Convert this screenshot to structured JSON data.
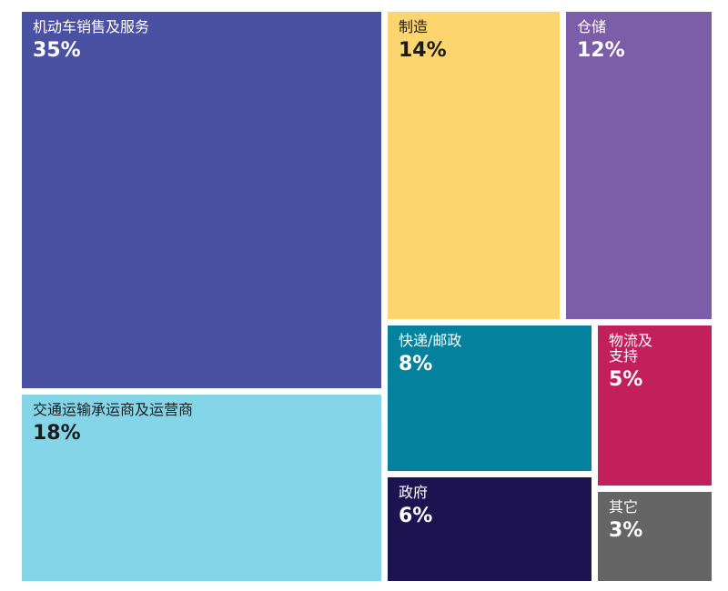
{
  "chart_data": {
    "type": "treemap",
    "items": [
      {
        "label": "机动车销售及服务",
        "value": 35,
        "display": "35%",
        "color": "#4a51a3",
        "text_color": "#ffffff"
      },
      {
        "label": "交通运输承运商及运营商",
        "value": 18,
        "display": "18%",
        "color": "#85d5e9",
        "text_color": "#1b1b1b"
      },
      {
        "label": "制造",
        "value": 14,
        "display": "14%",
        "color": "#fcd56f",
        "text_color": "#1b1b1b"
      },
      {
        "label": "仓储",
        "value": 12,
        "display": "12%",
        "color": "#7c5da7",
        "text_color": "#ffffff"
      },
      {
        "label": "快递/邮政",
        "value": 8,
        "display": "8%",
        "color": "#04819c",
        "text_color": "#ffffff"
      },
      {
        "label": "物流及\n支持",
        "value": 5,
        "display": "5%",
        "color": "#c21f5b",
        "text_color": "#ffffff"
      },
      {
        "label": "政府",
        "value": 6,
        "display": "6%",
        "color": "#1c1350",
        "text_color": "#ffffff"
      },
      {
        "label": "其它",
        "value": 3,
        "display": "3%",
        "color": "#656565",
        "text_color": "#ffffff"
      }
    ]
  }
}
